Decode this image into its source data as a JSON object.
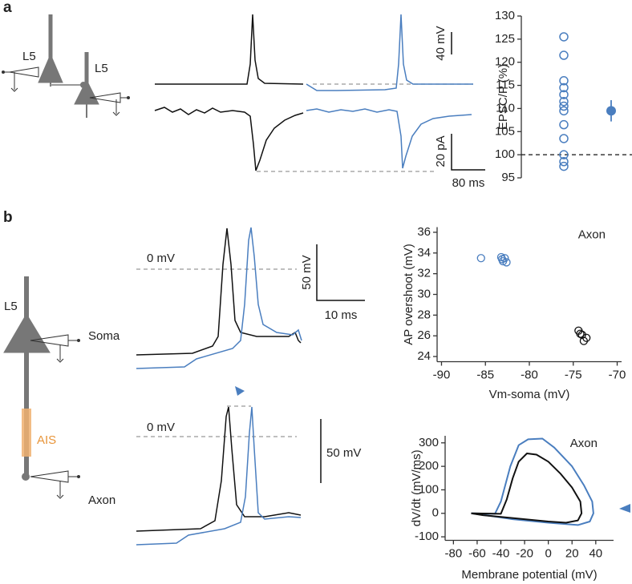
{
  "panel_labels": [
    "a",
    "b"
  ],
  "diagram_a": {
    "neuron1": "L5",
    "neuron2": "L5"
  },
  "traces_a": {
    "scale_voltage": "40 mV",
    "scale_current": "20 pA",
    "scale_time": "80 ms"
  },
  "diagram_b": {
    "cell": "L5",
    "soma": "Soma",
    "ais": "AIS",
    "axon": "Axon"
  },
  "traces_b": {
    "zero_top": "0 mV",
    "scale_voltage_top": "50 mV",
    "scale_time": "10 ms",
    "zero_bottom": "0 mV",
    "scale_voltage_bottom": "50 mV"
  },
  "chart_data": [
    {
      "type": "strip",
      "ylabel": "EPSC/P (%)",
      "color": "#4a7ebf",
      "values": [
        125.5,
        121.5,
        116,
        114.5,
        113,
        111.5,
        110.5,
        109.5,
        106.5,
        103.5,
        100,
        98.5,
        97.5
      ],
      "mean": 109.5,
      "error": 2.3,
      "reference_line": 100,
      "ylim": [
        95,
        130
      ],
      "yticks": [
        95,
        100,
        105,
        110,
        115,
        120,
        125,
        130
      ]
    },
    {
      "type": "scatter",
      "xlabel": "Vm-soma (mV)",
      "ylabel": "AP overshoot (mV)",
      "annotation": "Axon",
      "series": [
        {
          "color": "#4a7ebf",
          "x": [
            -85.5,
            -83.2,
            -83,
            -82.8,
            -82.6,
            -83.1
          ],
          "values": [
            33.5,
            33.6,
            33.2,
            33.5,
            33.1,
            33.4
          ]
        },
        {
          "color": "#111111",
          "x": [
            -74.4,
            -74,
            -73.8,
            -73.5,
            -74.2
          ],
          "values": [
            26.5,
            26.1,
            25.5,
            25.8,
            26.2
          ]
        }
      ],
      "xlim": [
        -90.5,
        -69.5
      ],
      "xticks": [
        -90,
        -85,
        -80,
        -75,
        -70
      ],
      "ylim": [
        23.5,
        36.5
      ],
      "yticks": [
        24,
        26,
        28,
        30,
        32,
        34,
        36
      ]
    },
    {
      "type": "line",
      "xlabel": "Membrane potential (mV)",
      "ylabel": "dV/dt (mV/ms)",
      "annotation": "Axon",
      "series": [
        {
          "color": "#4a7ebf",
          "x": [
            -65,
            -45,
            -40,
            -32,
            -25,
            -17,
            -5,
            5,
            20,
            30,
            37,
            38,
            35,
            25,
            0,
            -30,
            -50,
            -65
          ],
          "values": [
            0,
            -2,
            50,
            200,
            290,
            315,
            318,
            280,
            200,
            120,
            50,
            0,
            -35,
            -50,
            -40,
            -25,
            -10,
            0
          ]
        },
        {
          "color": "#111111",
          "x": [
            -65,
            -40,
            -35,
            -30,
            -25,
            -18,
            -10,
            0,
            10,
            20,
            27,
            28,
            25,
            15,
            0,
            -20,
            -40,
            -55,
            -65
          ],
          "values": [
            0,
            -2,
            60,
            150,
            220,
            255,
            250,
            220,
            170,
            110,
            50,
            0,
            -30,
            -40,
            -35,
            -25,
            -15,
            -8,
            0
          ]
        }
      ],
      "xlim": [
        -87,
        55
      ],
      "xticks": [
        -80,
        -60,
        -40,
        -20,
        0,
        20,
        40
      ],
      "ylim": [
        -115,
        330
      ],
      "yticks": [
        -100,
        0,
        100,
        200,
        300
      ]
    }
  ]
}
